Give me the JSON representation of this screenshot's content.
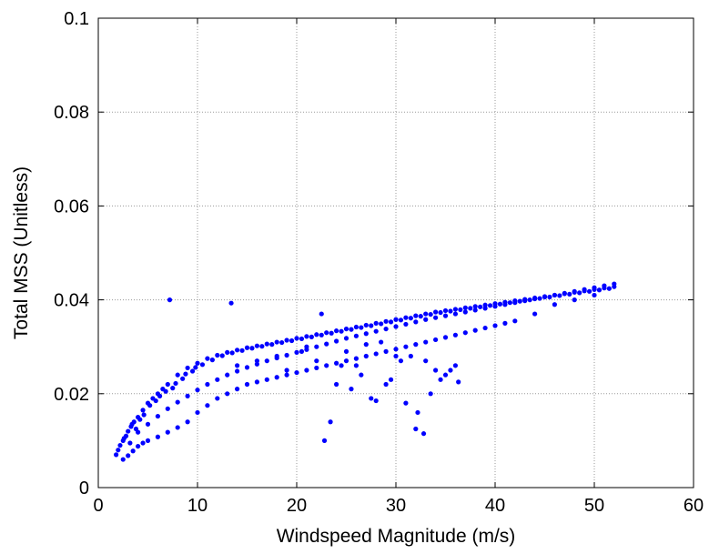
{
  "chart_data": {
    "type": "scatter",
    "title": "",
    "xlabel": "Windspeed Magnitude (m/s)",
    "ylabel": "Total MSS (Unitless)",
    "xlim": [
      0,
      60
    ],
    "ylim": [
      0,
      0.1
    ],
    "xticks": [
      0,
      10,
      20,
      30,
      40,
      50,
      60
    ],
    "xtick_labels": [
      "0",
      "10",
      "20",
      "30",
      "40",
      "50",
      "60"
    ],
    "yticks": [
      0,
      0.02,
      0.04,
      0.06,
      0.08,
      0.1
    ],
    "ytick_labels": [
      "0",
      "0.02",
      "0.04",
      "0.06",
      "0.08",
      "0.1"
    ],
    "grid": true,
    "marker_color": "#0000ff",
    "series": [
      {
        "x": [
          1.8,
          2.0,
          2.2,
          2.5,
          2.8,
          3.0,
          3.3,
          3.6,
          4.0,
          4.5,
          5.0,
          5.5,
          6.0,
          6.5,
          7.0,
          8.0,
          9.0,
          10.0,
          11.0,
          12.0,
          13.0,
          14.0,
          15.0,
          16.0,
          17.0,
          18.0,
          19.0,
          20.0,
          21.0,
          22.0,
          23.0,
          24.0,
          25.0,
          26.0,
          27.0,
          28.0,
          29.0,
          30.0,
          31.0,
          32.0,
          33.0,
          34.0,
          35.0,
          36.0,
          37.0,
          38.0,
          39.0,
          40.0,
          41.0,
          42.0,
          43.0,
          44.0,
          45.0,
          46.0,
          47.0,
          48.0,
          49.0,
          50.0,
          51.0,
          52.0,
          2.5,
          3.0,
          3.5,
          4.0,
          4.5,
          5.0,
          6.0,
          7.0,
          8.0,
          9.0,
          10.0,
          11.0,
          12.0,
          13.0,
          14.0,
          15.0,
          16.0,
          17.0,
          18.0,
          19.0,
          20.0,
          21.0,
          22.0,
          23.0,
          24.0,
          25.0,
          26.0,
          27.0,
          28.0,
          29.0,
          30.0,
          31.0,
          32.0,
          33.0,
          34.0,
          35.0,
          36.0,
          37.0,
          38.0,
          39.0,
          40.0,
          41.0,
          42.0,
          44.0,
          46.0,
          48.0,
          50.0,
          7.2,
          13.4,
          22.5,
          23.4,
          22.8,
          28.0,
          24.5,
          25.5,
          26.5,
          27.5,
          29.0,
          30.5,
          31.5,
          32.0,
          32.8,
          33.5,
          34.5,
          35.5,
          36.0,
          36.3,
          32.2,
          27.0,
          25.0,
          31.0,
          33.0,
          35.0,
          30.0,
          34.0,
          21.0,
          18.0,
          16.0,
          14.0,
          19.0,
          20.5,
          22.0,
          24.0,
          26.0,
          28.5,
          29.5,
          3.2,
          3.8,
          4.2,
          5.2,
          6.2,
          7.5,
          8.5,
          9.5,
          10.5,
          11.5,
          12.5,
          13.5,
          14.5,
          15.5,
          16.5,
          17.5,
          18.5,
          19.5,
          20.5,
          21.5,
          22.5,
          23.5,
          24.5,
          25.5,
          26.5,
          27.5,
          28.5,
          29.5,
          30.5,
          31.5,
          32.5,
          33.5,
          34.5,
          35.5,
          36.5,
          37.5,
          38.5,
          39.5,
          40.5,
          41.5,
          42.5,
          43.5,
          44.5,
          45.5,
          46.5,
          47.5,
          48.5,
          49.5,
          50.5,
          51.5,
          2.6,
          3.4,
          4.6,
          5.8,
          6.8,
          7.8,
          8.8,
          9.8,
          4.0,
          5.0,
          6.0,
          7.0,
          8.0,
          9.0,
          10.0,
          11.0,
          12.0,
          13.0,
          14.0,
          15.0,
          16.0,
          17.0,
          18.0,
          19.0,
          20.0,
          21.0,
          22.0,
          23.0,
          24.0,
          25.0,
          26.0,
          27.0,
          28.0,
          29.0,
          30.0,
          31.0,
          32.0,
          33.0,
          34.0,
          35.0,
          36.0,
          37.0,
          38.0,
          39.0,
          40.0,
          41.0,
          42.0,
          43.0,
          44.0,
          45.0,
          46.0,
          47.0,
          48.0,
          49.0,
          50.0,
          51.0,
          52.0
        ],
        "y": [
          0.007,
          0.008,
          0.009,
          0.01,
          0.011,
          0.012,
          0.013,
          0.014,
          0.015,
          0.0165,
          0.018,
          0.019,
          0.02,
          0.021,
          0.022,
          0.024,
          0.0255,
          0.0265,
          0.0275,
          0.0282,
          0.0288,
          0.0293,
          0.0298,
          0.0302,
          0.0306,
          0.031,
          0.0314,
          0.0318,
          0.0322,
          0.0326,
          0.033,
          0.0334,
          0.0338,
          0.0342,
          0.0346,
          0.035,
          0.0354,
          0.0358,
          0.0362,
          0.0366,
          0.037,
          0.0374,
          0.0377,
          0.038,
          0.0383,
          0.0386,
          0.0389,
          0.0392,
          0.0395,
          0.0398,
          0.0401,
          0.0404,
          0.0407,
          0.041,
          0.0413,
          0.0416,
          0.0419,
          0.0422,
          0.0425,
          0.0428,
          0.006,
          0.0068,
          0.0078,
          0.0088,
          0.0095,
          0.01,
          0.0108,
          0.0118,
          0.0128,
          0.014,
          0.016,
          0.0175,
          0.019,
          0.02,
          0.021,
          0.022,
          0.0225,
          0.023,
          0.0235,
          0.024,
          0.0245,
          0.025,
          0.0255,
          0.026,
          0.0265,
          0.027,
          0.0275,
          0.028,
          0.0285,
          0.029,
          0.0295,
          0.03,
          0.0305,
          0.031,
          0.0315,
          0.032,
          0.0325,
          0.033,
          0.0335,
          0.034,
          0.0345,
          0.035,
          0.0355,
          0.037,
          0.039,
          0.04,
          0.041,
          0.04,
          0.0393,
          0.037,
          0.014,
          0.01,
          0.0185,
          0.026,
          0.021,
          0.024,
          0.019,
          0.022,
          0.027,
          0.028,
          0.0125,
          0.0115,
          0.02,
          0.023,
          0.025,
          0.026,
          0.0225,
          0.016,
          0.0305,
          0.029,
          0.018,
          0.027,
          0.024,
          0.028,
          0.025,
          0.03,
          0.028,
          0.027,
          0.026,
          0.025,
          0.029,
          0.027,
          0.022,
          0.026,
          0.031,
          0.023,
          0.0095,
          0.0125,
          0.0145,
          0.0175,
          0.0195,
          0.0212,
          0.0232,
          0.0248,
          0.0262,
          0.0272,
          0.0281,
          0.0287,
          0.0292,
          0.0297,
          0.0301,
          0.0305,
          0.0309,
          0.0313,
          0.0317,
          0.0321,
          0.0325,
          0.0329,
          0.0333,
          0.0337,
          0.0341,
          0.0345,
          0.0349,
          0.0353,
          0.0357,
          0.0361,
          0.0365,
          0.0369,
          0.0373,
          0.0376,
          0.0379,
          0.0382,
          0.0385,
          0.0388,
          0.0391,
          0.0394,
          0.0397,
          0.04,
          0.0403,
          0.0406,
          0.0409,
          0.0412,
          0.0415,
          0.0418,
          0.0421,
          0.0424,
          0.0105,
          0.0135,
          0.0155,
          0.0185,
          0.0205,
          0.0222,
          0.0242,
          0.0256,
          0.0118,
          0.0135,
          0.0152,
          0.0168,
          0.0182,
          0.0195,
          0.0208,
          0.022,
          0.023,
          0.024,
          0.0248,
          0.0256,
          0.0263,
          0.027,
          0.0276,
          0.0282,
          0.0288,
          0.0294,
          0.03,
          0.0306,
          0.0312,
          0.0318,
          0.0323,
          0.0328,
          0.0333,
          0.0338,
          0.0343,
          0.0348,
          0.0353,
          0.0358,
          0.0362,
          0.0366,
          0.037,
          0.0374,
          0.0378,
          0.0382,
          0.0386,
          0.039,
          0.0394,
          0.0398,
          0.0402,
          0.0406,
          0.041,
          0.0414,
          0.0418,
          0.0422,
          0.0426,
          0.043,
          0.0434
        ]
      }
    ]
  }
}
